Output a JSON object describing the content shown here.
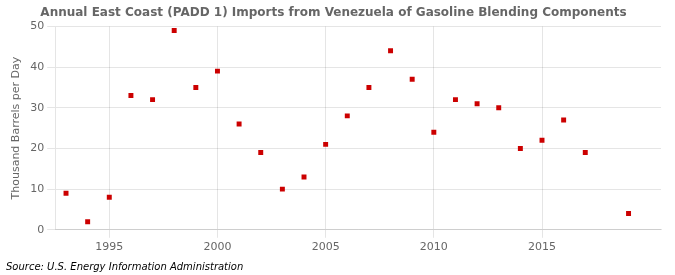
{
  "chart_data": {
    "type": "scatter",
    "title": "Annual East Coast (PADD 1) Imports from Venezuela of Gasoline Blending Components",
    "y_label": "Thousand Barrels per Day",
    "annotations": [
      "Source: U.S. Energy Information Administration"
    ],
    "x": [
      1993,
      1994,
      1995,
      1996,
      1997,
      1998,
      1999,
      2000,
      2001,
      2002,
      2003,
      2004,
      2005,
      2006,
      2007,
      2008,
      2009,
      2010,
      2011,
      2012,
      2013,
      2014,
      2015,
      2016,
      2017,
      2019
    ],
    "values": [
      9,
      2,
      8,
      33,
      32,
      49,
      35,
      39,
      26,
      19,
      10,
      13,
      21,
      28,
      35,
      44,
      37,
      24,
      32,
      31,
      30,
      20,
      22,
      27,
      19,
      4
    ],
    "color": "#cc0000",
    "marker": "square",
    "xlim": [
      1992.5,
      2020.5
    ],
    "xticks": [
      1995,
      2000,
      2005,
      2010,
      2015
    ],
    "ylim": [
      0,
      50
    ],
    "yticks": [
      0,
      10,
      20,
      30,
      40,
      50
    ],
    "grid": true
  }
}
